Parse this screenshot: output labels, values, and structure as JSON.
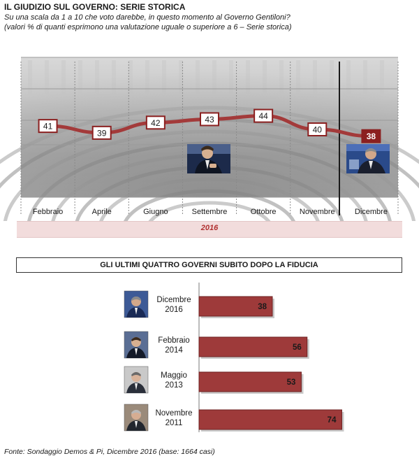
{
  "header": {
    "title": "IL GIUDIZIO SUL GOVERNO: SERIE STORICA",
    "subtitle_line1": "Su una scala da 1 a 10 che voto darebbe, in questo momento al Governo Gentiloni?",
    "subtitle_line2": "(valori % di quanti esprimono una valutazione uguale o superiore a 6 – Serie storica)"
  },
  "chart_data": [
    {
      "type": "line",
      "categories": [
        "Febbraio",
        "Aprile",
        "Giugno",
        "Settembre",
        "Ottobre",
        "Novembre",
        "Dicembre"
      ],
      "values": [
        41,
        39,
        42,
        43,
        44,
        40,
        38
      ],
      "year_label": "2016",
      "ylim": [
        20,
        60
      ],
      "highlight_last": true,
      "colors": {
        "line": "#a33a3a",
        "marker_border": "#8b2020",
        "last_marker_fill": "#8b2020"
      }
    },
    {
      "type": "bar",
      "orientation": "horizontal",
      "title": "GLI ULTIMI QUATTRO GOVERNI SUBITO DOPO LA FIDUCIA",
      "categories": [
        {
          "line1": "Dicembre",
          "line2": "2016"
        },
        {
          "line1": "Febbraio",
          "line2": "2014"
        },
        {
          "line1": "Maggio",
          "line2": "2013"
        },
        {
          "line1": "Novembre",
          "line2": "2011"
        }
      ],
      "values": [
        38,
        56,
        53,
        74
      ],
      "xlim": [
        0,
        76
      ],
      "colors": {
        "bar": "#9e3a3a",
        "bar_dark": "#6e2323"
      }
    }
  ],
  "footer": {
    "source": "Fonte: Sondaggio Demos & Pi, Dicembre 2016 (base: 1664 casi)"
  }
}
